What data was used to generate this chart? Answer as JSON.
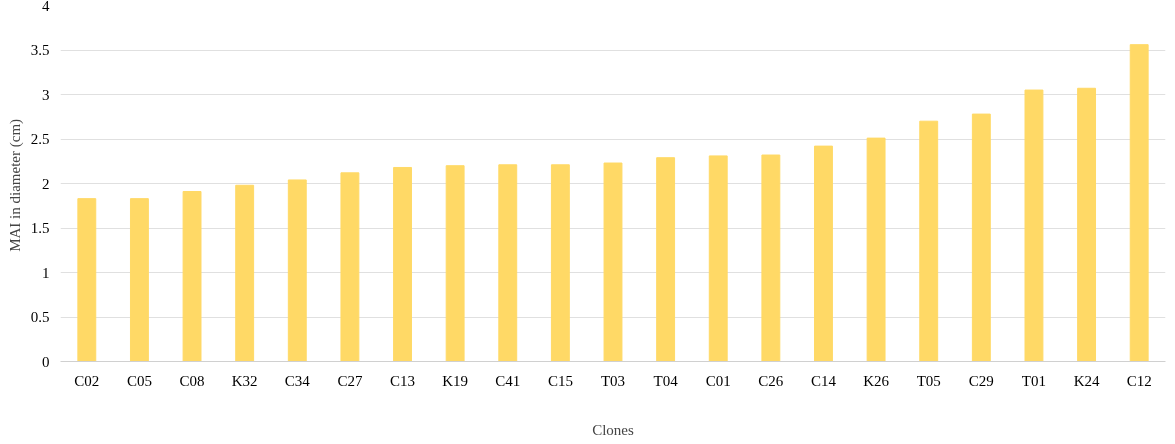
{
  "chart_data": {
    "type": "bar",
    "xlabel": "Clones",
    "ylabel": "MAI in  diameter (cm)",
    "categories": [
      "C02",
      "C05",
      "C08",
      "K32",
      "C34",
      "C27",
      "C13",
      "K19",
      "C41",
      "C15",
      "T03",
      "T04",
      "C01",
      "C26",
      "C14",
      "K26",
      "T05",
      "C29",
      "T01",
      "K24",
      "C12"
    ],
    "values": [
      1.83,
      1.83,
      1.91,
      1.98,
      2.04,
      2.12,
      2.18,
      2.2,
      2.21,
      2.21,
      2.23,
      2.29,
      2.31,
      2.32,
      2.42,
      2.51,
      2.7,
      2.78,
      3.05,
      3.07,
      3.56
    ],
    "color": "#ffd966",
    "ylim": [
      0,
      4
    ],
    "yticks": [
      0,
      0.5,
      1,
      1.5,
      2,
      2.5,
      3,
      3.5,
      4
    ],
    "grid": "y"
  }
}
